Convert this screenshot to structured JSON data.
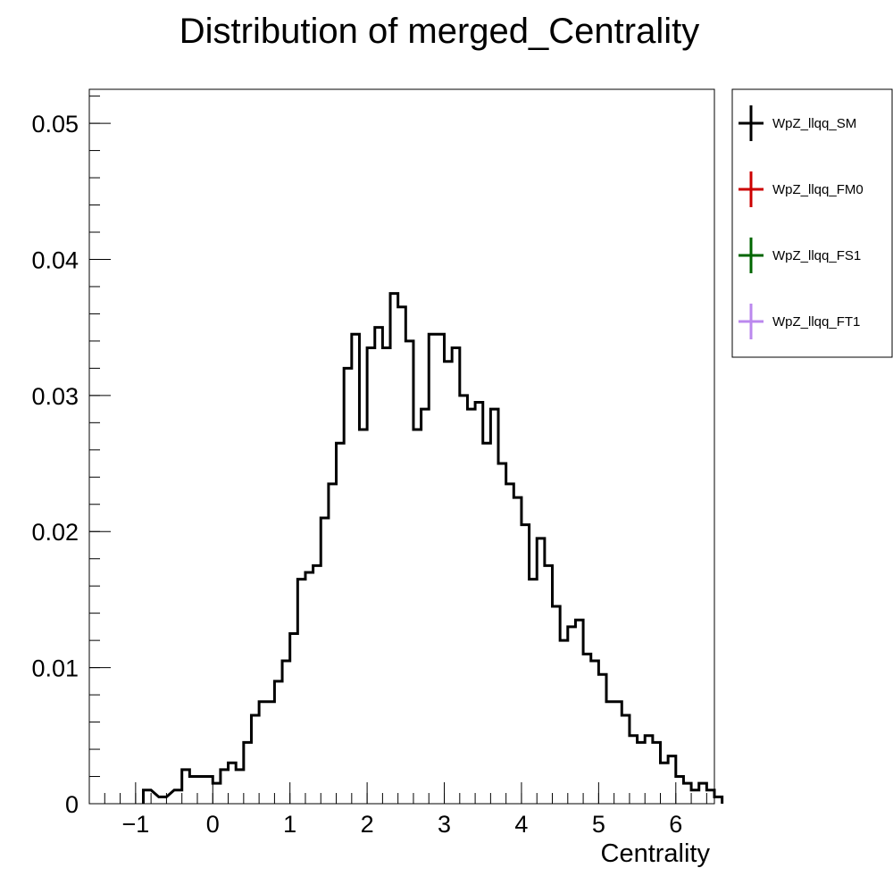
{
  "chart_data": {
    "type": "histogram",
    "title": "Distribution of merged_Centrality",
    "xlabel": "Centrality",
    "ylabel": "",
    "xlim": [
      -1.6,
      6.5
    ],
    "ylim": [
      0,
      0.0525
    ],
    "x_ticks": [
      {
        "value": -1,
        "label": "−1"
      },
      {
        "value": 0,
        "label": "0"
      },
      {
        "value": 1,
        "label": "1"
      },
      {
        "value": 2,
        "label": "2"
      },
      {
        "value": 3,
        "label": "3"
      },
      {
        "value": 4,
        "label": "4"
      },
      {
        "value": 5,
        "label": "5"
      },
      {
        "value": 6,
        "label": "6"
      }
    ],
    "y_ticks": [
      {
        "value": 0,
        "label": "0"
      },
      {
        "value": 0.01,
        "label": "0.01"
      },
      {
        "value": 0.02,
        "label": "0.02"
      },
      {
        "value": 0.03,
        "label": "0.03"
      },
      {
        "value": 0.04,
        "label": "0.04"
      },
      {
        "value": 0.05,
        "label": "0.05"
      }
    ],
    "bin_width": 0.1,
    "legend_position": "outside-right",
    "series": [
      {
        "name": "WpZ_llqq_SM",
        "color": "#000000",
        "points": [
          [
            -0.9,
            0.001
          ],
          [
            -0.7,
            0.0005
          ],
          [
            -0.5,
            0.001
          ],
          [
            -0.4,
            0.0025
          ],
          [
            -0.3,
            0.002
          ],
          [
            -0.2,
            0.002
          ],
          [
            -0.1,
            0.002
          ],
          [
            0.0,
            0.0015
          ],
          [
            0.1,
            0.0025
          ],
          [
            0.2,
            0.003
          ],
          [
            0.3,
            0.0025
          ],
          [
            0.4,
            0.0045
          ],
          [
            0.5,
            0.0065
          ],
          [
            0.6,
            0.0075
          ],
          [
            0.7,
            0.0075
          ],
          [
            0.8,
            0.009
          ],
          [
            0.9,
            0.0105
          ],
          [
            1.0,
            0.0125
          ],
          [
            1.1,
            0.0165
          ],
          [
            1.2,
            0.017
          ],
          [
            1.3,
            0.0175
          ],
          [
            1.4,
            0.021
          ],
          [
            1.5,
            0.0235
          ],
          [
            1.6,
            0.0265
          ],
          [
            1.7,
            0.032
          ],
          [
            1.8,
            0.0345
          ],
          [
            1.9,
            0.0275
          ],
          [
            2.0,
            0.0335
          ],
          [
            2.1,
            0.035
          ],
          [
            2.2,
            0.0335
          ],
          [
            2.3,
            0.0375
          ],
          [
            2.4,
            0.0365
          ],
          [
            2.5,
            0.034
          ],
          [
            2.6,
            0.0275
          ],
          [
            2.7,
            0.029
          ],
          [
            2.8,
            0.0345
          ],
          [
            2.9,
            0.0345
          ],
          [
            3.0,
            0.0325
          ],
          [
            3.1,
            0.0335
          ],
          [
            3.2,
            0.03
          ],
          [
            3.3,
            0.029
          ],
          [
            3.4,
            0.0295
          ],
          [
            3.5,
            0.0265
          ],
          [
            3.6,
            0.029
          ],
          [
            3.7,
            0.025
          ],
          [
            3.8,
            0.0235
          ],
          [
            3.9,
            0.0225
          ],
          [
            4.0,
            0.0205
          ],
          [
            4.1,
            0.0165
          ],
          [
            4.2,
            0.0195
          ],
          [
            4.3,
            0.0175
          ],
          [
            4.4,
            0.0145
          ],
          [
            4.5,
            0.012
          ],
          [
            4.6,
            0.013
          ],
          [
            4.7,
            0.0135
          ],
          [
            4.8,
            0.011
          ],
          [
            4.9,
            0.0105
          ],
          [
            5.0,
            0.0095
          ],
          [
            5.1,
            0.0075
          ],
          [
            5.2,
            0.0075
          ],
          [
            5.3,
            0.0065
          ],
          [
            5.4,
            0.005
          ],
          [
            5.5,
            0.0045
          ],
          [
            5.6,
            0.005
          ],
          [
            5.7,
            0.0045
          ],
          [
            5.8,
            0.003
          ],
          [
            5.9,
            0.0035
          ],
          [
            6.0,
            0.002
          ],
          [
            6.1,
            0.0015
          ],
          [
            6.2,
            0.001
          ],
          [
            6.3,
            0.0015
          ],
          [
            6.4,
            0.001
          ],
          [
            6.5,
            0.0005
          ]
        ]
      },
      {
        "name": "WpZ_llqq_FM0",
        "color": "#cc0000",
        "points": []
      },
      {
        "name": "WpZ_llqq_FS1",
        "color": "#006600",
        "points": []
      },
      {
        "name": "WpZ_llqq_FT1",
        "color": "#bb88ee",
        "points": []
      }
    ]
  }
}
